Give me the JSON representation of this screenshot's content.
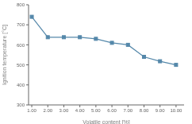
{
  "chart_data": {
    "type": "line",
    "x": [
      1.0,
      2.0,
      3.0,
      4.0,
      5.0,
      6.0,
      7.0,
      8.0,
      9.0,
      10.0
    ],
    "values": [
      740,
      638,
      638,
      638,
      630,
      610,
      600,
      540,
      518,
      500
    ],
    "xlabel": "Volatile content [%]",
    "ylabel": "Ignition temperature [°C]",
    "xlim": [
      0.8,
      10.5
    ],
    "ylim": [
      300,
      800
    ],
    "xticks": [
      {
        "value": 1.0,
        "label": "1.00"
      },
      {
        "value": 2.0,
        "label": "2.00"
      },
      {
        "value": 3.0,
        "label": "3.00"
      },
      {
        "value": 4.0,
        "label": "4.00"
      },
      {
        "value": 5.0,
        "label": "5.00"
      },
      {
        "value": 6.0,
        "label": "6.00"
      },
      {
        "value": 7.0,
        "label": "7.00"
      },
      {
        "value": 8.0,
        "label": "8.00"
      },
      {
        "value": 9.0,
        "label": "9.00"
      },
      {
        "value": 10.0,
        "label": "10.00"
      }
    ],
    "yticks": [
      300,
      400,
      500,
      600,
      700,
      800
    ],
    "color": "#5588aa",
    "marker": "square",
    "grid": false
  }
}
